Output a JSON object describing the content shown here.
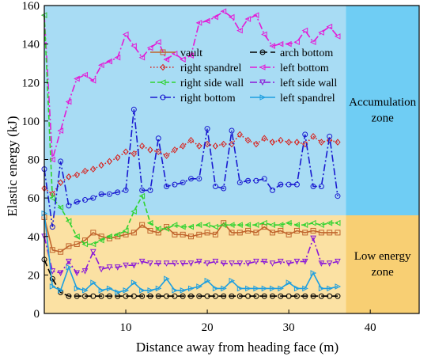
{
  "chart_data": {
    "type": "line",
    "xlabel": "Distance away from heading face (m)",
    "ylabel": "Elastic energy  (kJ)",
    "xlim": [
      0,
      46
    ],
    "ylim": [
      0,
      160
    ],
    "xticks": [
      10,
      20,
      30,
      40
    ],
    "yticks": [
      0,
      20,
      40,
      60,
      80,
      100,
      120,
      140,
      160
    ],
    "grid": false,
    "legend_position": "upper-left inside plot",
    "zones": [
      {
        "label_lines": [
          "Accumulation",
          "zone"
        ],
        "y_from": 51,
        "y_to": 160,
        "x_to_left_band": 37,
        "color": "#a8dcf4",
        "side_color": "#6fcdf4"
      },
      {
        "label_lines": [
          "Low energy",
          "zone"
        ],
        "y_from": 0,
        "y_to": 51,
        "x_to_left_band": 37,
        "color": "#fbe1a3",
        "side_color": "#f8cf73"
      }
    ],
    "series": [
      {
        "name": "vault",
        "color": "#c0642c",
        "dash": "solid",
        "marker": "square",
        "x": [
          0,
          1,
          2,
          3,
          4,
          5,
          6,
          7,
          8,
          9,
          10,
          11,
          12,
          13,
          14,
          15,
          16,
          17,
          18,
          19,
          20,
          21,
          22,
          23,
          24,
          25,
          26,
          27,
          28,
          29,
          30,
          31,
          32,
          33,
          34,
          35,
          36
        ],
        "y": [
          50,
          33,
          32,
          35,
          36,
          38,
          42,
          40,
          39,
          40,
          41,
          42,
          46,
          43,
          42,
          45,
          41,
          41,
          40,
          41,
          42,
          41,
          47,
          42,
          42,
          43,
          42,
          45,
          42,
          43,
          41,
          43,
          42,
          43,
          42,
          42,
          42
        ]
      },
      {
        "name": "arch bottom",
        "color": "#000000",
        "dash": "longdash",
        "marker": "circle",
        "x": [
          0,
          1,
          2,
          3,
          4,
          5,
          6,
          7,
          8,
          9,
          10,
          11,
          12,
          13,
          14,
          15,
          16,
          17,
          18,
          19,
          20,
          21,
          22,
          23,
          24,
          25,
          26,
          27,
          28,
          29,
          30,
          31,
          32,
          33,
          34,
          35,
          36
        ],
        "y": [
          28,
          18,
          11,
          9,
          9,
          9,
          9,
          9,
          9,
          9,
          9,
          9,
          9,
          9,
          9,
          9,
          9,
          9,
          9,
          9,
          9,
          9,
          9,
          9,
          9,
          9,
          9,
          9,
          9,
          9,
          9,
          9,
          9,
          9,
          9,
          9,
          9
        ]
      },
      {
        "name": "right spandrel",
        "color": "#d8221e",
        "dash": "dot",
        "marker": "diamond",
        "x": [
          0,
          1,
          2,
          3,
          4,
          5,
          6,
          7,
          8,
          9,
          10,
          11,
          12,
          13,
          14,
          15,
          16,
          17,
          18,
          19,
          20,
          21,
          22,
          23,
          24,
          25,
          26,
          27,
          28,
          29,
          30,
          31,
          32,
          33,
          34,
          35,
          36
        ],
        "y": [
          65,
          62,
          68,
          71,
          72,
          74,
          75,
          77,
          79,
          81,
          84,
          83,
          87,
          85,
          84,
          82,
          85,
          87,
          90,
          87,
          88,
          87,
          88,
          88,
          93,
          90,
          88,
          91,
          89,
          90,
          89,
          89,
          88,
          92,
          89,
          90,
          89
        ]
      },
      {
        "name": "left bottom",
        "color": "#e31ad6",
        "dash": "dashdot",
        "marker": "triangle-left",
        "x": [
          0,
          1,
          2,
          3,
          4,
          5,
          6,
          7,
          8,
          9,
          10,
          11,
          12,
          13,
          14,
          15,
          16,
          17,
          18,
          19,
          20,
          21,
          22,
          23,
          24,
          25,
          26,
          27,
          28,
          29,
          30,
          31,
          32,
          33,
          34,
          35,
          36
        ],
        "y": [
          155,
          80,
          95,
          110,
          122,
          124,
          121,
          129,
          131,
          133,
          145,
          139,
          133,
          138,
          141,
          132,
          135,
          132,
          134,
          151,
          152,
          154,
          157,
          154,
          147,
          153,
          155,
          145,
          139,
          140,
          140,
          141,
          147,
          141,
          146,
          149,
          144
        ]
      },
      {
        "name": "right side wall",
        "color": "#2fd32f",
        "dash": "dash",
        "marker": "triangle-left",
        "x": [
          0,
          1,
          2,
          3,
          4,
          5,
          6,
          7,
          8,
          9,
          10,
          11,
          12,
          13,
          14,
          15,
          16,
          17,
          18,
          19,
          20,
          21,
          22,
          23,
          24,
          25,
          26,
          27,
          28,
          29,
          30,
          31,
          32,
          33,
          34,
          35,
          36
        ],
        "y": [
          155,
          60,
          55,
          48,
          40,
          36,
          36,
          38,
          40,
          41,
          43,
          53,
          61,
          47,
          44,
          44,
          46,
          45,
          45,
          46,
          46,
          45,
          46,
          46,
          46,
          46,
          46,
          47,
          46,
          46,
          47,
          46,
          46,
          47,
          46,
          47,
          47
        ]
      },
      {
        "name": "left side wall",
        "color": "#8a18d8",
        "dash": "dashdot",
        "marker": "triangle-down",
        "x": [
          0,
          1,
          2,
          3,
          4,
          5,
          6,
          7,
          8,
          9,
          10,
          11,
          12,
          13,
          14,
          15,
          16,
          17,
          18,
          19,
          20,
          21,
          22,
          23,
          24,
          25,
          26,
          27,
          28,
          29,
          30,
          31,
          32,
          33,
          34,
          35,
          36
        ],
        "y": [
          40,
          22,
          21,
          27,
          21,
          22,
          32,
          23,
          24,
          24,
          25,
          25,
          27,
          26,
          26,
          26,
          26,
          26,
          26,
          27,
          26,
          27,
          26,
          26,
          26,
          26,
          27,
          27,
          26,
          27,
          26,
          27,
          27,
          39,
          26,
          26,
          27
        ]
      },
      {
        "name": "right bottom",
        "color": "#1a1ad0",
        "dash": "dashdot",
        "marker": "circle",
        "x": [
          0,
          1,
          2,
          3,
          4,
          5,
          6,
          7,
          8,
          9,
          10,
          11,
          12,
          13,
          14,
          15,
          16,
          17,
          18,
          19,
          20,
          21,
          22,
          23,
          24,
          25,
          26,
          27,
          28,
          29,
          30,
          31,
          32,
          33,
          34,
          35,
          36
        ],
        "y": [
          75,
          45,
          79,
          56,
          58,
          59,
          60,
          62,
          62,
          63,
          64,
          106,
          64,
          64,
          91,
          66,
          67,
          68,
          70,
          70,
          96,
          66,
          65,
          95,
          68,
          69,
          69,
          70,
          64,
          67,
          67,
          67,
          93,
          66,
          66,
          92,
          61
        ]
      },
      {
        "name": "left spandrel",
        "color": "#1e9fe0",
        "dash": "solid",
        "marker": "triangle-right",
        "x": [
          0,
          1,
          2,
          3,
          4,
          5,
          6,
          7,
          8,
          9,
          10,
          11,
          12,
          13,
          14,
          15,
          16,
          17,
          18,
          19,
          20,
          21,
          22,
          23,
          24,
          25,
          26,
          27,
          28,
          29,
          30,
          31,
          32,
          33,
          34,
          35,
          36
        ],
        "y": [
          52,
          14,
          12,
          24,
          13,
          12,
          16,
          12,
          13,
          11,
          12,
          16,
          12,
          12,
          13,
          18,
          12,
          12,
          13,
          14,
          17,
          13,
          13,
          17,
          13,
          13,
          13,
          13,
          13,
          13,
          16,
          13,
          13,
          21,
          13,
          13,
          14
        ]
      }
    ]
  }
}
